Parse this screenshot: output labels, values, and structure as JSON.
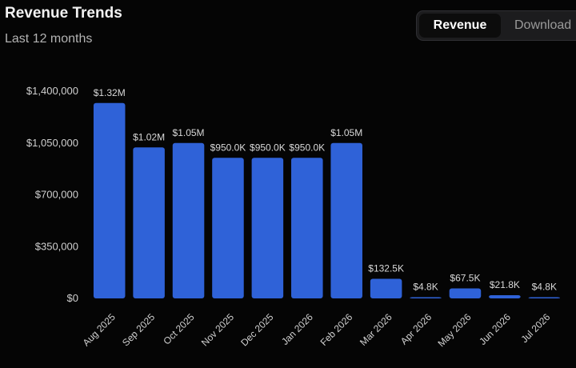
{
  "header": {
    "title": "Revenue Trends",
    "subtitle": "Last 12 months"
  },
  "toggle": {
    "options": [
      "Revenue",
      "Download"
    ],
    "selected": "Revenue"
  },
  "colors": {
    "bar": "#2f62d8",
    "background": "#050505"
  },
  "chart_data": {
    "type": "bar",
    "title": "Revenue Trends",
    "subtitle": "Last 12 months",
    "categories": [
      "Aug 2025",
      "Sep 2025",
      "Oct 2025",
      "Nov 2025",
      "Dec 2025",
      "Jan 2026",
      "Feb 2026",
      "Mar 2026",
      "Apr 2026",
      "May 2026",
      "Jun 2026",
      "Jul 2026"
    ],
    "values": [
      1320000,
      1020000,
      1050000,
      950000,
      950000,
      950000,
      1050000,
      132500,
      4800,
      67500,
      21800,
      4800
    ],
    "data_labels": [
      "$1.32M",
      "$1.02M",
      "$1.05M",
      "$950.0K",
      "$950.0K",
      "$950.0K",
      "$1.05M",
      "$132.5K",
      "$4.8K",
      "$67.5K",
      "$21.8K",
      "$4.8K"
    ],
    "y_ticks": [
      0,
      350000,
      700000,
      1050000,
      1400000
    ],
    "y_tick_labels": [
      "$0",
      "$350,000",
      "$700,000",
      "$1,050,000",
      "$1,400,000"
    ],
    "ylim": [
      0,
      1400000
    ],
    "grid": false,
    "legend": "none",
    "xlabel": "",
    "ylabel": ""
  }
}
